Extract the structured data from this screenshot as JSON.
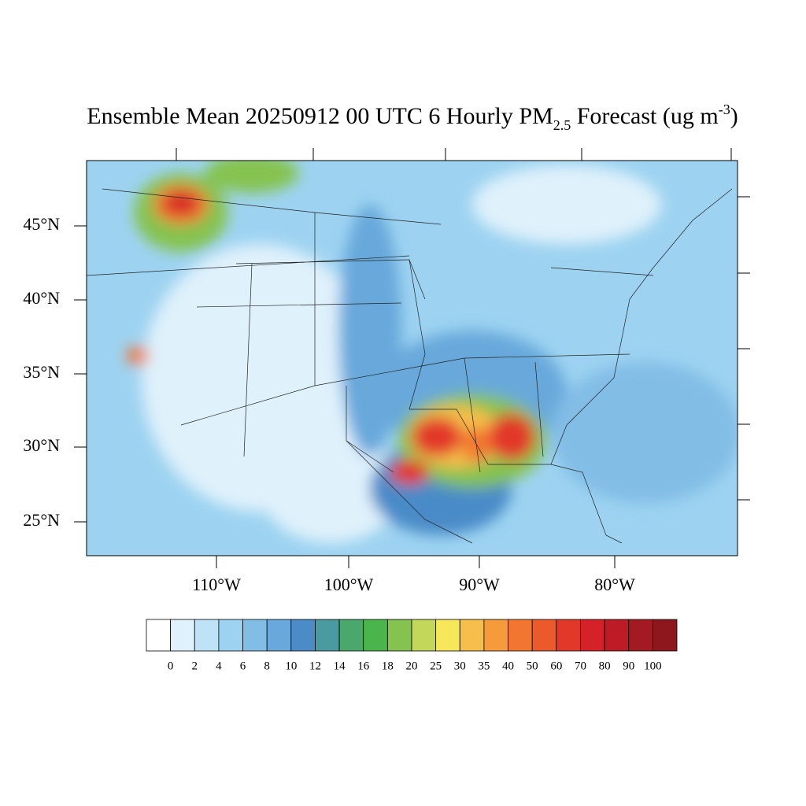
{
  "title": {
    "main": "Ensemble Mean 20250912 00 UTC 6 Hourly PM",
    "subscript": "2.5",
    "after": " Forecast (ug m",
    "superscript": "-3",
    "close": ")"
  },
  "map": {
    "lat_labels": [
      "45°N",
      "40°N",
      "35°N",
      "30°N",
      "25°N"
    ],
    "lon_labels": [
      "110°W",
      "100°W",
      "90°W",
      "80°W"
    ]
  },
  "colorbar": {
    "levels": [
      0,
      2,
      4,
      6,
      8,
      10,
      12,
      14,
      16,
      18,
      20,
      25,
      30,
      35,
      40,
      50,
      60,
      70,
      80,
      90,
      100
    ],
    "colors": [
      "#ffffff",
      "#dff1fb",
      "#bfe3f6",
      "#9dd3f1",
      "#82bde6",
      "#68a8db",
      "#4a8bc8",
      "#4a9b9f",
      "#4aa86d",
      "#4ab54a",
      "#85c350",
      "#c3d75a",
      "#f6e75a",
      "#f6be4b",
      "#f59b3c",
      "#f2762f",
      "#ec5a2b",
      "#e2382a",
      "#d42228",
      "#bd1c26",
      "#a31a22",
      "#8c181d"
    ]
  }
}
